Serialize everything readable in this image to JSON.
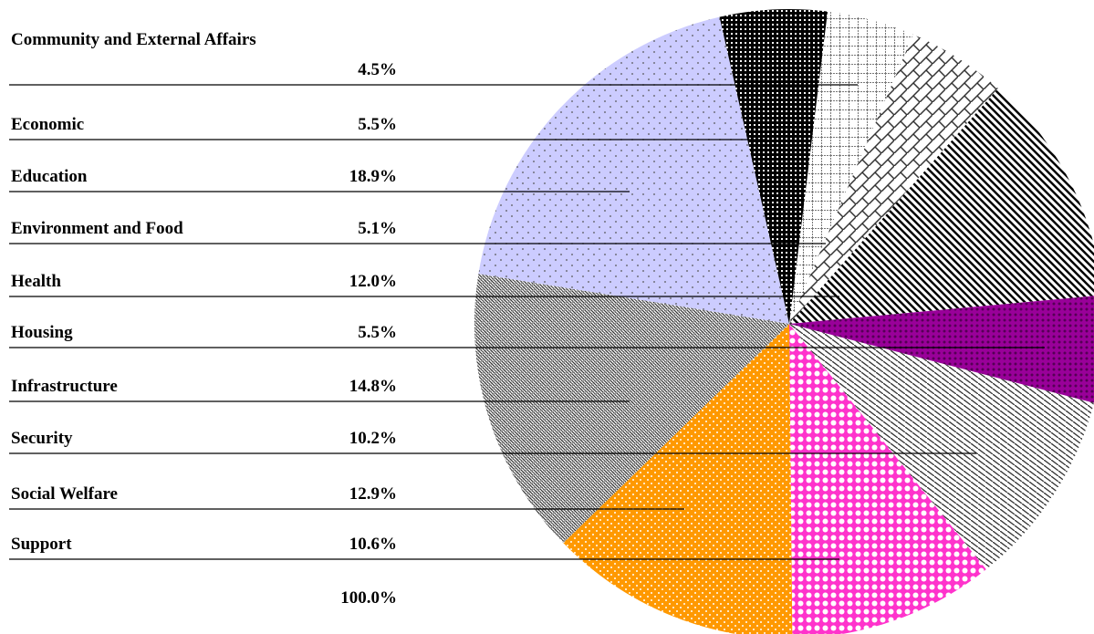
{
  "chart_data": {
    "type": "pie",
    "categories": [
      "Community and External Affairs",
      "Economic",
      "Education",
      "Environment and Food",
      "Health",
      "Housing",
      "Infrastructure",
      "Security",
      "Social Welfare",
      "Support"
    ],
    "values": [
      4.5,
      5.5,
      18.9,
      5.1,
      12.0,
      5.5,
      14.8,
      10.2,
      12.9,
      10.6
    ],
    "value_labels": [
      "4.5%",
      "5.5%",
      "18.9%",
      "5.1%",
      "12.0%",
      "5.5%",
      "14.8%",
      "10.2%",
      "12.9%",
      "10.6%"
    ],
    "colors": [
      "#ffffff",
      "#ffffff",
      "#ccccff",
      "#ffffff",
      "#ffffff",
      "#990099",
      "#ffffff",
      "#ffffff",
      "#ff9900",
      "#ff33cc"
    ],
    "total_label": "100.0%"
  }
}
